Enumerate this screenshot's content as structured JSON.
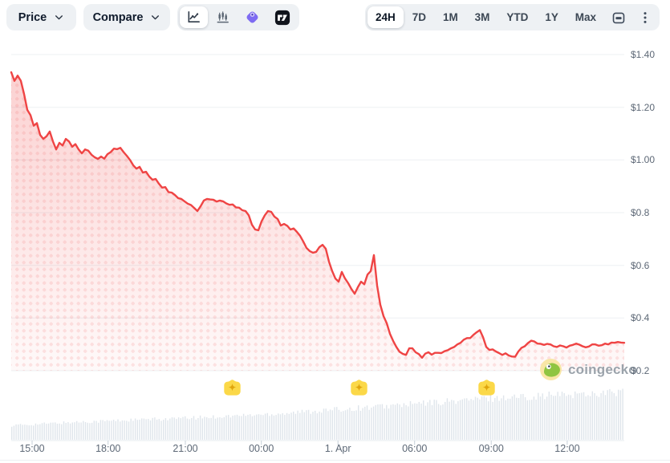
{
  "toolbar": {
    "price_label": "Price",
    "compare_label": "Compare",
    "chart_types": [
      {
        "name": "line-chart",
        "selected": true
      },
      {
        "name": "candlestick-chart",
        "selected": false
      },
      {
        "name": "geckoterminal",
        "selected": false
      },
      {
        "name": "tradingview",
        "selected": false
      }
    ],
    "ranges": [
      {
        "label": "24H",
        "selected": true
      },
      {
        "label": "7D",
        "selected": false
      },
      {
        "label": "1M",
        "selected": false
      },
      {
        "label": "3M",
        "selected": false
      },
      {
        "label": "YTD",
        "selected": false
      },
      {
        "label": "1Y",
        "selected": false
      },
      {
        "label": "Max",
        "selected": false
      }
    ]
  },
  "watermark": {
    "text": "coingecko"
  },
  "colors": {
    "line": "#ef4444",
    "fill_dot": "rgba(239,68,68,0.13)",
    "grid": "#edf0f3",
    "volume_bar": "#dfe5eb",
    "axis_text": "#5d6876",
    "marker_badge": "#fbd848",
    "marker_star": "#e0a50d",
    "control_bg": "#eef1f4"
  },
  "chart_data": {
    "type": "area",
    "title": "Price (24H)",
    "x_ticks": [
      "15:00",
      "18:00",
      "21:00",
      "00:00",
      "1. Apr",
      "06:00",
      "09:00",
      "12:00"
    ],
    "x_tick_t": [
      0.034,
      0.158,
      0.284,
      0.408,
      0.533,
      0.658,
      0.783,
      0.907
    ],
    "y_ticks": [
      "$1.40",
      "$1.20",
      "$1.00",
      "$0.8",
      "$0.6",
      "$0.4",
      "$0.2"
    ],
    "y_tick_values": [
      1.4,
      1.2,
      1.0,
      0.8,
      0.6,
      0.4,
      0.2
    ],
    "ylim": [
      0.2,
      1.4
    ],
    "grid": true,
    "legend": false,
    "series": [
      {
        "name": "price_usd",
        "values": [
          1.333,
          1.3,
          1.32,
          1.3,
          1.25,
          1.19,
          1.17,
          1.13,
          1.14,
          1.095,
          1.08,
          1.09,
          1.108,
          1.07,
          1.04,
          1.065,
          1.055,
          1.08,
          1.07,
          1.05,
          1.06,
          1.04,
          1.025,
          1.04,
          1.035,
          1.02,
          1.01,
          1.004,
          1.013,
          1.005,
          1.022,
          1.03,
          1.043,
          1.041,
          1.046,
          1.03,
          1.016,
          1.0,
          0.98,
          0.967,
          0.974,
          0.952,
          0.955,
          0.937,
          0.925,
          0.928,
          0.91,
          0.895,
          0.897,
          0.878,
          0.876,
          0.867,
          0.855,
          0.852,
          0.843,
          0.834,
          0.829,
          0.818,
          0.806,
          0.824,
          0.846,
          0.852,
          0.85,
          0.849,
          0.842,
          0.846,
          0.843,
          0.835,
          0.83,
          0.831,
          0.82,
          0.819,
          0.809,
          0.806,
          0.79,
          0.754,
          0.736,
          0.733,
          0.767,
          0.79,
          0.806,
          0.803,
          0.785,
          0.776,
          0.751,
          0.757,
          0.75,
          0.736,
          0.74,
          0.727,
          0.712,
          0.69,
          0.666,
          0.654,
          0.648,
          0.651,
          0.669,
          0.678,
          0.663,
          0.614,
          0.578,
          0.55,
          0.538,
          0.575,
          0.55,
          0.532,
          0.51,
          0.492,
          0.517,
          0.538,
          0.528,
          0.565,
          0.578,
          0.639,
          0.523,
          0.45,
          0.407,
          0.38,
          0.34,
          0.313,
          0.29,
          0.272,
          0.264,
          0.26,
          0.285,
          0.285,
          0.27,
          0.263,
          0.249,
          0.265,
          0.27,
          0.261,
          0.268,
          0.268,
          0.267,
          0.274,
          0.278,
          0.285,
          0.29,
          0.3,
          0.306,
          0.318,
          0.324,
          0.324,
          0.336,
          0.346,
          0.354,
          0.327,
          0.29,
          0.279,
          0.281,
          0.273,
          0.267,
          0.26,
          0.266,
          0.258,
          0.254,
          0.253,
          0.273,
          0.287,
          0.293,
          0.305,
          0.314,
          0.311,
          0.303,
          0.302,
          0.298,
          0.302,
          0.3,
          0.293,
          0.29,
          0.296,
          0.293,
          0.288,
          0.295,
          0.298,
          0.303,
          0.299,
          0.293,
          0.289,
          0.292,
          0.3,
          0.3,
          0.295,
          0.297,
          0.303,
          0.3,
          0.307,
          0.306,
          0.309,
          0.307,
          0.306
        ]
      }
    ],
    "markers": {
      "name": "highlight-events",
      "t": [
        0.361,
        0.568,
        0.776
      ]
    },
    "volume_profile": {
      "description": "relative height of bottom volume bars, ramps up left to right",
      "t": [
        0,
        0.12,
        0.28,
        0.41,
        0.53,
        0.66,
        0.78,
        0.91,
        1.0
      ],
      "v": [
        0.3,
        0.38,
        0.45,
        0.53,
        0.63,
        0.75,
        0.87,
        0.95,
        1.0
      ]
    }
  }
}
